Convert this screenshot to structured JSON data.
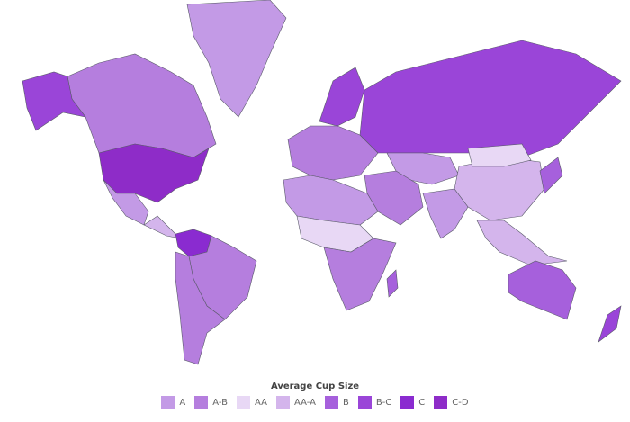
{
  "legend": {
    "title": "Average Cup Size",
    "items": [
      {
        "label": "A",
        "color": "#c39ae6"
      },
      {
        "label": "A-B",
        "color": "#b57ede"
      },
      {
        "label": "AA",
        "color": "#e8d8f5"
      },
      {
        "label": "AA-A",
        "color": "#d4b5ec"
      },
      {
        "label": "B",
        "color": "#a660dc"
      },
      {
        "label": "B-C",
        "color": "#9a45d8"
      },
      {
        "label": "C",
        "color": "#8a2bd0"
      },
      {
        "label": "C-D",
        "color": "#8e2cc8"
      }
    ]
  },
  "no_data_color": "#d6d6d6",
  "regions": [
    {
      "name": "Greenland",
      "category": "A"
    },
    {
      "name": "Canada",
      "category": "A-B"
    },
    {
      "name": "Alaska",
      "category": "B-C"
    },
    {
      "name": "United States",
      "category": "C-D"
    },
    {
      "name": "Mexico",
      "category": "A"
    },
    {
      "name": "Central America",
      "category": "AA-A"
    },
    {
      "name": "Venezuela/Colombia",
      "category": "C"
    },
    {
      "name": "Brazil",
      "category": "A-B"
    },
    {
      "name": "Southern South America",
      "category": "A-B"
    },
    {
      "name": "Europe",
      "category": "A-B"
    },
    {
      "name": "Scandinavia",
      "category": "B-C"
    },
    {
      "name": "Russia",
      "category": "B-C"
    },
    {
      "name": "Central Asia",
      "category": "A"
    },
    {
      "name": "China",
      "category": "AA-A"
    },
    {
      "name": "Mongolia",
      "category": "AA"
    },
    {
      "name": "India",
      "category": "A"
    },
    {
      "name": "Middle East",
      "category": "A-B"
    },
    {
      "name": "North Africa",
      "category": "A"
    },
    {
      "name": "Sahel",
      "category": "AA"
    },
    {
      "name": "Southern Africa",
      "category": "A-B"
    },
    {
      "name": "Madagascar",
      "category": "B"
    },
    {
      "name": "Southeast Asia",
      "category": "AA-A"
    },
    {
      "name": "Japan",
      "category": "B"
    },
    {
      "name": "Australia",
      "category": "B"
    },
    {
      "name": "New Zealand",
      "category": "B-C"
    }
  ]
}
